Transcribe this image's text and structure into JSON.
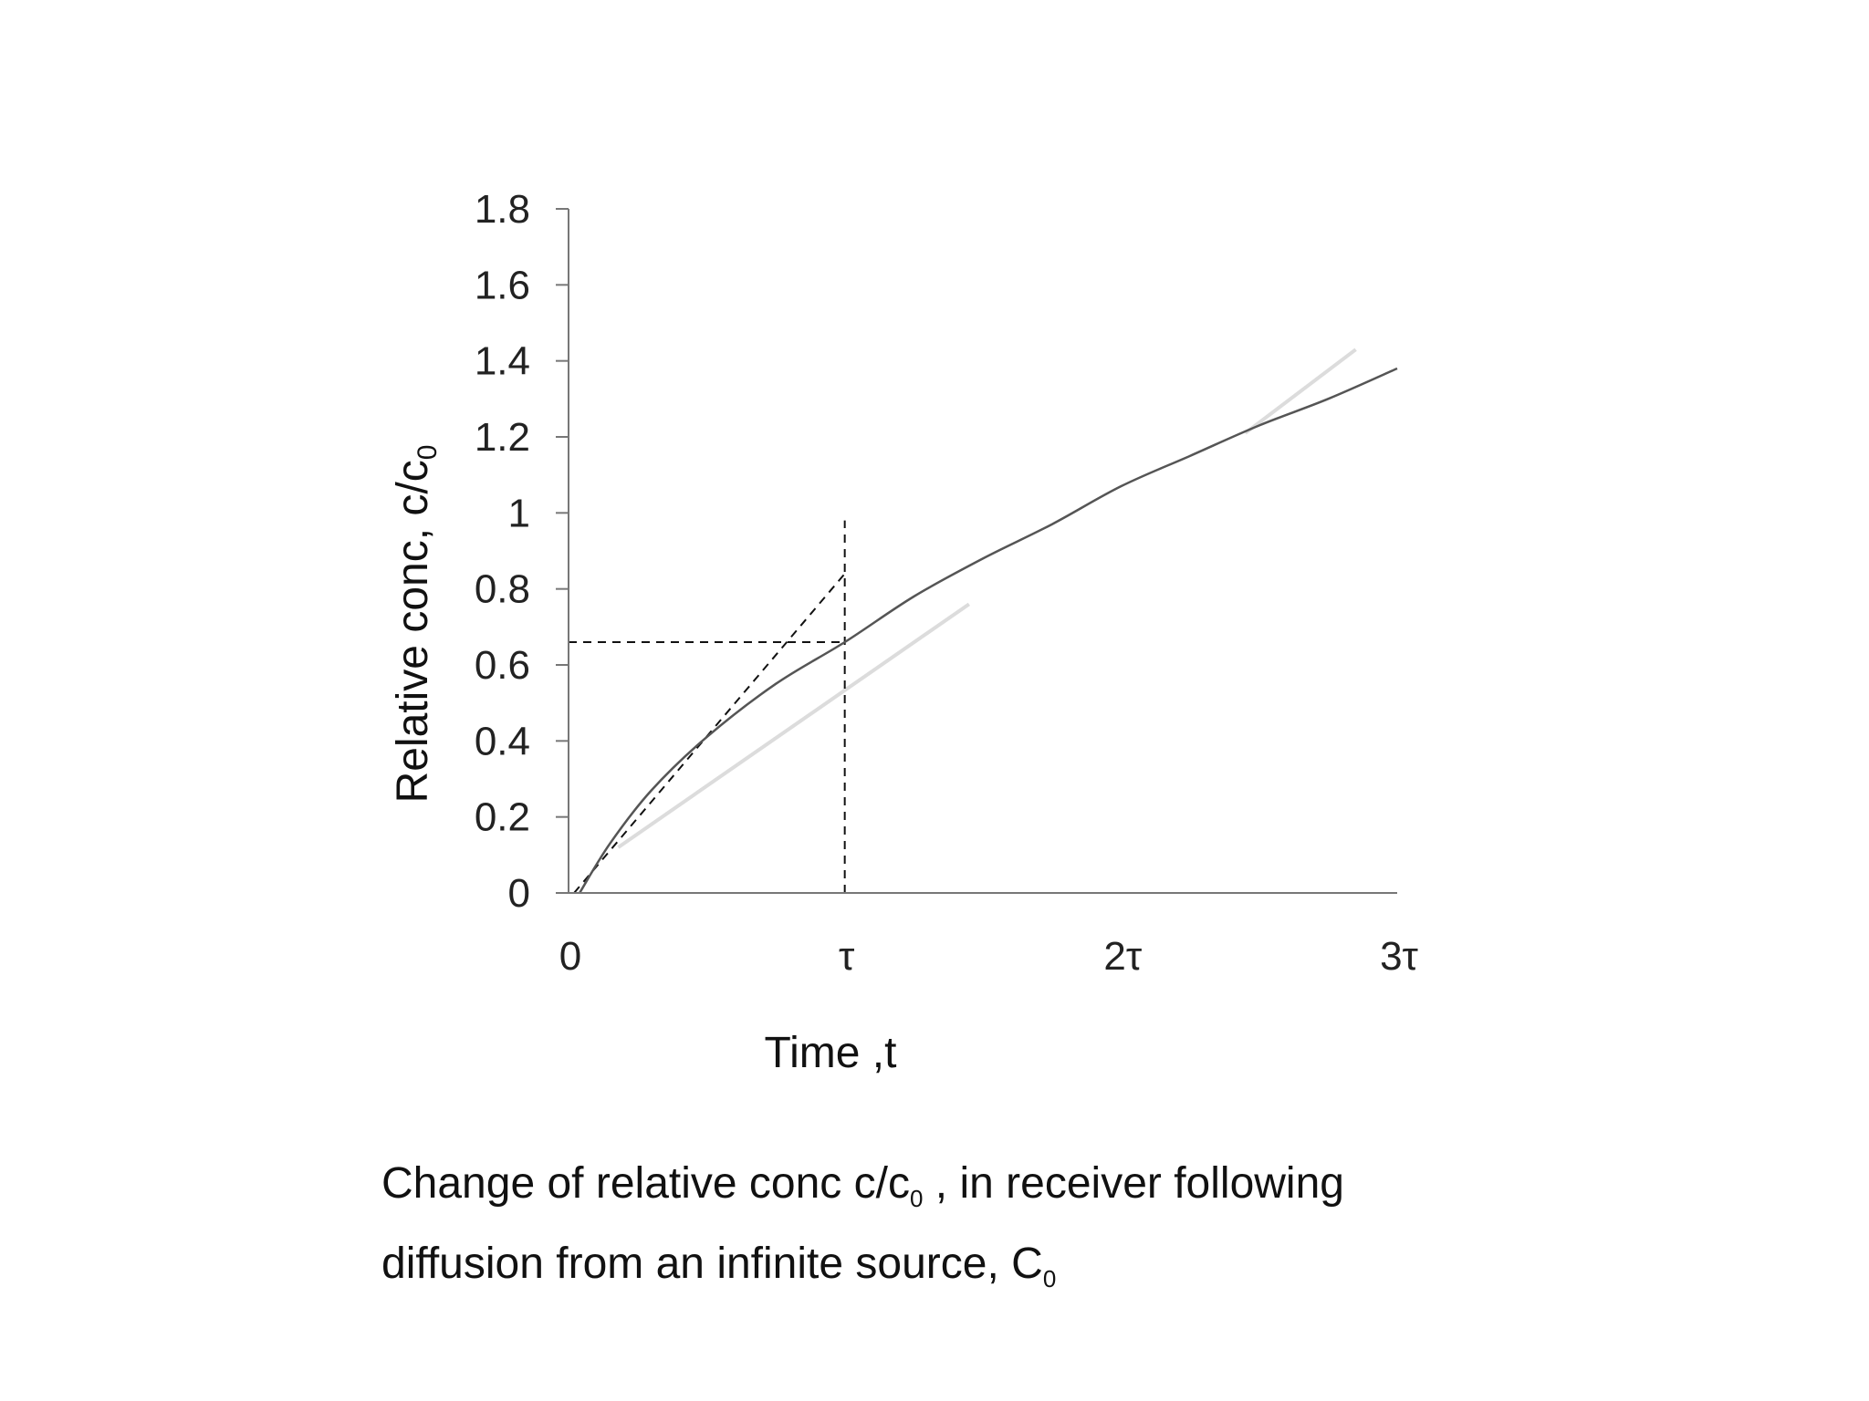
{
  "chart_data": {
    "type": "line",
    "x_axis": {
      "label": "Time ,t",
      "range": [
        0,
        3
      ],
      "tick_values": [
        0,
        1,
        2,
        3
      ],
      "tick_labels": [
        "0",
        "τ",
        "2τ",
        "3τ"
      ],
      "unit": "τ"
    },
    "y_axis": {
      "label_main": "Relative conc, c/c",
      "label_sub": "0",
      "range": [
        0,
        1.8
      ],
      "tick_values": [
        0,
        0.2,
        0.4,
        0.6,
        0.8,
        1,
        1.2,
        1.4,
        1.6,
        1.8
      ],
      "tick_labels": [
        "0",
        "0.2",
        "0.4",
        "0.6",
        "0.8",
        "1",
        "1.2",
        "1.4",
        "1.6",
        "1.8"
      ]
    },
    "grid": false,
    "series": [
      {
        "style": "solid",
        "color": "#555555",
        "x": [
          0.04,
          0.15,
          0.3,
          0.5,
          0.75,
          1.0,
          1.25,
          1.5,
          1.75,
          2.0,
          2.25,
          2.5,
          2.75,
          3.0
        ],
        "y": [
          0.0,
          0.13,
          0.27,
          0.41,
          0.55,
          0.66,
          0.78,
          0.88,
          0.97,
          1.07,
          1.15,
          1.23,
          1.3,
          1.38
        ]
      }
    ],
    "reference_lines": [
      {
        "kind": "tangent",
        "style": "dashed",
        "x": [
          0.02,
          1.0
        ],
        "y": [
          0.0,
          0.84
        ]
      },
      {
        "kind": "vertical",
        "style": "dashed",
        "x": [
          1.0,
          1.0
        ],
        "y": [
          0.0,
          0.98
        ]
      },
      {
        "kind": "horizontal",
        "style": "dashed",
        "x": [
          0.0,
          1.0
        ],
        "y": [
          0.66,
          0.66
        ]
      }
    ],
    "faint_lines": [
      {
        "x": [
          0.18,
          1.45
        ],
        "y": [
          0.12,
          0.76
        ]
      },
      {
        "x": [
          2.45,
          2.85
        ],
        "y": [
          1.21,
          1.43
        ]
      }
    ]
  },
  "caption": {
    "line1_before": "Change of relative conc c/c",
    "line1_sub": "0",
    "line1_after": " , in receiver following",
    "line2_before": "diffusion from an infinite source, C",
    "line2_sub": "0"
  }
}
